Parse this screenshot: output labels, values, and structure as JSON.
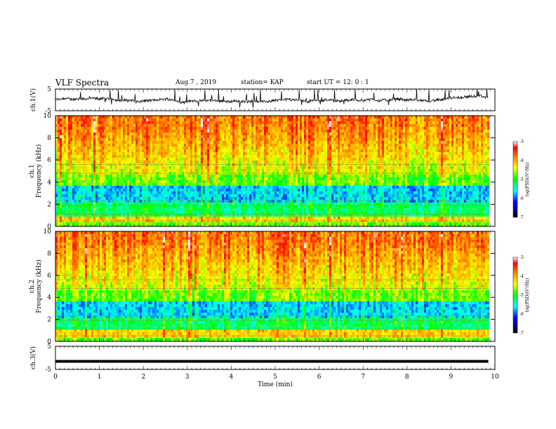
{
  "header": {
    "title": "VLF Spectra",
    "date_label": "Aug.7  , 2019",
    "station_label": "station= KAP",
    "start_label": "start  UT  =   12: 0  : 1"
  },
  "chart_data": [
    {
      "type": "line",
      "name": "ch1-voltage",
      "ylabel": "ch.1(V)",
      "ylim": [
        -5,
        5
      ],
      "yticks": [
        "5",
        "-5"
      ],
      "xlim": [
        0,
        10
      ],
      "xend": 9.85,
      "style": "noisy-waveform"
    },
    {
      "type": "heatmap",
      "name": "ch1-spectrogram",
      "ylabel": "Frequency  (kHz)",
      "ylabel2": "ch.1",
      "ylim": [
        0,
        10
      ],
      "yticks": [
        "0",
        "2",
        "4",
        "6",
        "8",
        "10"
      ],
      "xlim": [
        0,
        10
      ],
      "xend": 9.85,
      "colorbar": {
        "label": "log(PSD)(V²/Hz)",
        "range": [
          -7,
          -3
        ],
        "ticks": [
          "-3",
          "-4",
          "-5",
          "-6",
          "-7"
        ]
      }
    },
    {
      "type": "heatmap",
      "name": "ch2-spectrogram",
      "ylabel": "Frequency  (kHz)",
      "ylabel2": "ch.2",
      "ylim": [
        0,
        10
      ],
      "yticks": [
        "0",
        "2",
        "4",
        "6",
        "8",
        "10"
      ],
      "xlim": [
        0,
        10
      ],
      "xend": 9.85,
      "colorbar": {
        "label": "log(PSD)(V²/Hz)",
        "range": [
          -7,
          -3
        ],
        "ticks": [
          "-3",
          "-4",
          "-5",
          "-6",
          "-7"
        ]
      }
    },
    {
      "type": "line",
      "name": "ch3-voltage",
      "ylabel": "ch.3(V)",
      "ylim": [
        -5,
        5
      ],
      "yticks": [
        "5",
        "-5"
      ],
      "xlim": [
        0,
        10
      ],
      "xend": 9.85,
      "constant_value": -1.5,
      "xlabel": "Time  (min)",
      "xticks": [
        "0",
        "1",
        "2",
        "3",
        "4",
        "5",
        "6",
        "7",
        "8",
        "9",
        "10"
      ]
    }
  ]
}
